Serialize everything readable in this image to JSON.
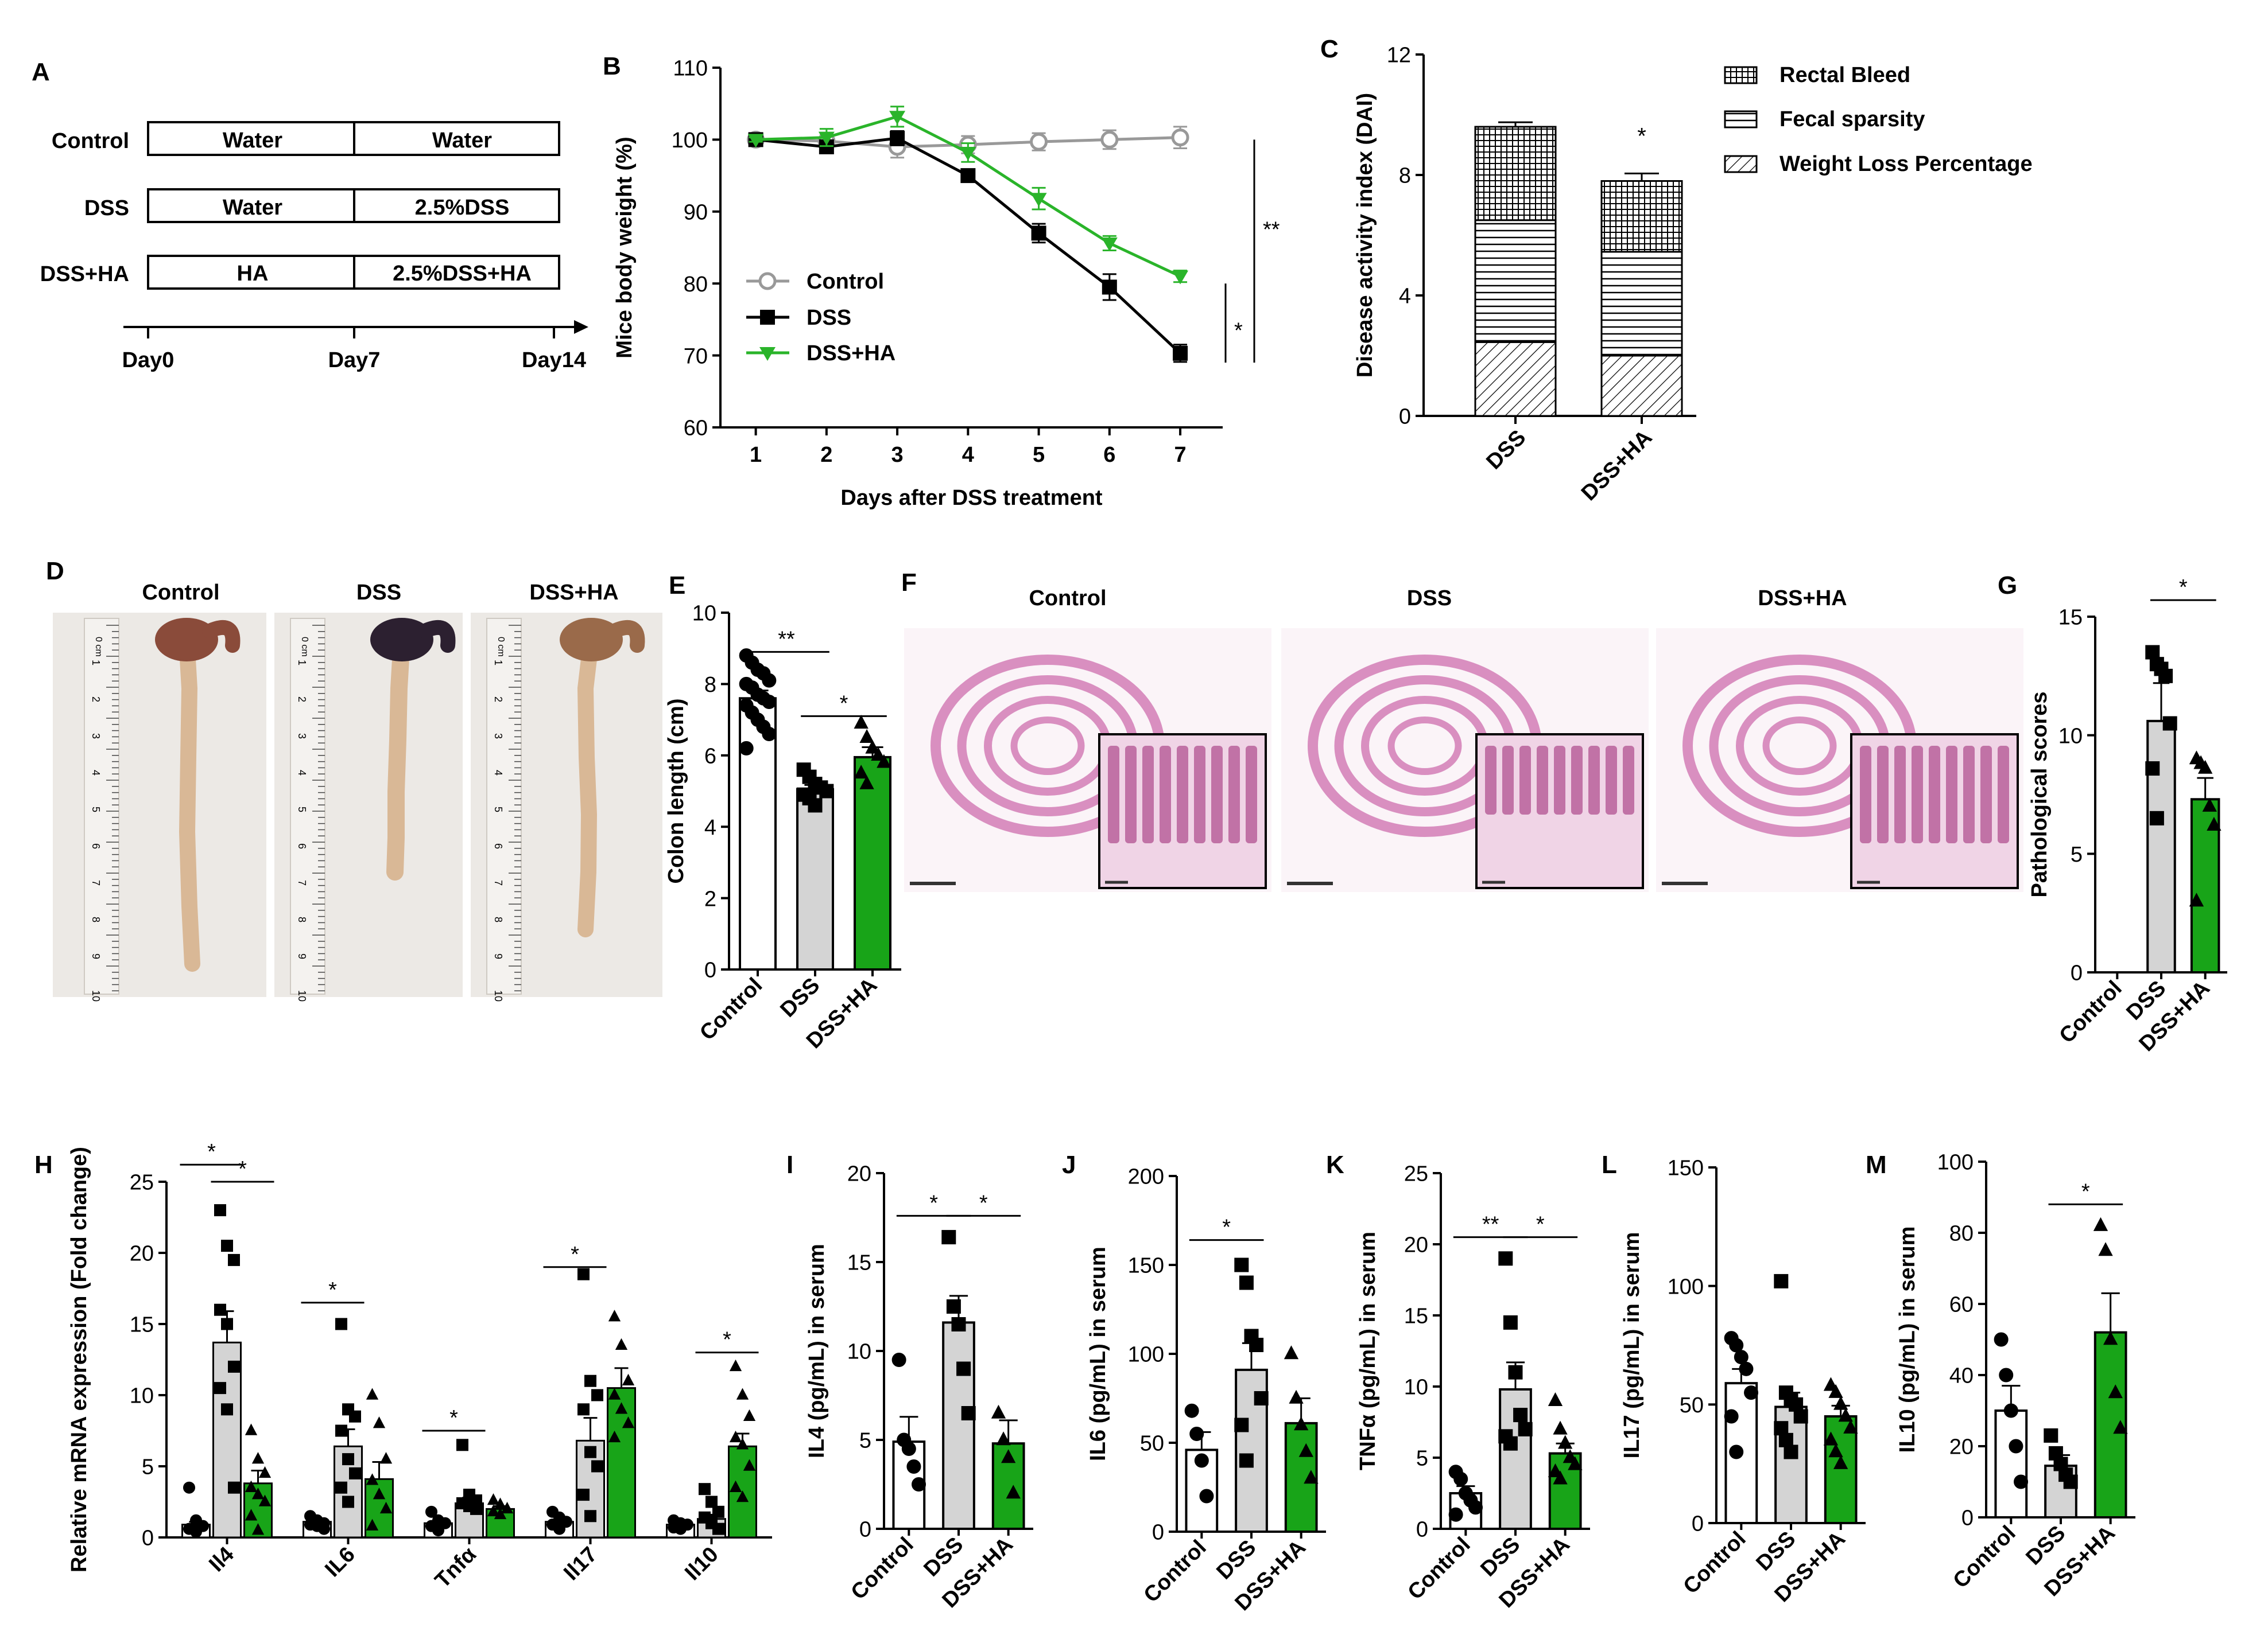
{
  "figure": {
    "panel_letters": [
      "A",
      "B",
      "C",
      "D",
      "E",
      "F",
      "G",
      "H",
      "I",
      "J",
      "K",
      "L",
      "M"
    ],
    "colors": {
      "control": "#ffffff",
      "dss": "#d4d4d4",
      "dss_ha": "#18a418",
      "line_control": "#999999",
      "line_dss": "#000000",
      "line_dss_ha": "#2ab42a",
      "tissue": "#d98fc0",
      "background": "#ffffff"
    }
  },
  "panel_a": {
    "rows": [
      {
        "label": "Control",
        "phase1": "Water",
        "phase2": "Water"
      },
      {
        "label": "DSS",
        "phase1": "Water",
        "phase2": "2.5%DSS"
      },
      {
        "label": "DSS+HA",
        "phase1": "HA",
        "phase2": "2.5%DSS+HA"
      }
    ],
    "timeline": [
      "Day0",
      "Day7",
      "Day14"
    ]
  },
  "panel_d": {
    "labels": [
      "Control",
      "DSS",
      "DSS+HA"
    ],
    "ruler_unit": "0 cm",
    "ruler_ticks": [
      "1",
      "2",
      "3",
      "4",
      "5",
      "6",
      "7",
      "8",
      "9",
      "10"
    ]
  },
  "panel_f": {
    "labels": [
      "Control",
      "DSS",
      "DSS+HA"
    ]
  },
  "chart_data": [
    {
      "id": "B",
      "type": "line",
      "xlabel": "Days after DSS treatment",
      "ylabel": "Mice body weight (%)",
      "x": [
        1,
        2,
        3,
        4,
        5,
        6,
        7
      ],
      "xlim": [
        0.5,
        7.6
      ],
      "ylim": [
        60,
        110
      ],
      "yticks": [
        60,
        70,
        80,
        90,
        100,
        110
      ],
      "series": [
        {
          "name": "Control",
          "values": [
            100,
            99.8,
            99,
            99.3,
            99.7,
            100,
            100.3
          ],
          "err": [
            0.3,
            0.8,
            1.5,
            1.2,
            1.2,
            1.3,
            1.5
          ]
        },
        {
          "name": "DSS",
          "values": [
            100,
            99,
            100.2,
            95,
            87,
            79.5,
            70.3
          ],
          "err": [
            0.3,
            0.8,
            1,
            0.6,
            1.3,
            1.8,
            1.2
          ]
        },
        {
          "name": "DSS+HA",
          "values": [
            100,
            100.3,
            103.2,
            98.2,
            91.8,
            85.6,
            81
          ],
          "err": [
            0.3,
            1.2,
            1.4,
            1.3,
            1.5,
            1,
            0.8
          ]
        }
      ],
      "annotations": [
        "**",
        "*"
      ]
    },
    {
      "id": "C",
      "type": "bar",
      "ylabel": "Disease activity index (DAI)",
      "categories": [
        "DSS",
        "DSS+HA"
      ],
      "ylim": [
        0,
        12
      ],
      "yticks": [
        0,
        4,
        8,
        12
      ],
      "series": [
        {
          "name": "Weight Loss Percentage",
          "values": [
            2.45,
            2.0
          ],
          "err": [
            0.15,
            0.25
          ]
        },
        {
          "name": "Fecal sparsity",
          "values": [
            4.05,
            3.45
          ],
          "err": [
            0.1,
            0.15
          ]
        },
        {
          "name": "Rectal Bleed",
          "values": [
            3.1,
            2.35
          ],
          "err": [
            0.15,
            0.25
          ]
        }
      ],
      "annotations": [
        "*"
      ]
    },
    {
      "id": "E",
      "type": "bar",
      "ylabel": "Colon length (cm)",
      "categories": [
        "Control",
        "DSS",
        "DSS+HA"
      ],
      "ylim": [
        0,
        10
      ],
      "yticks": [
        0,
        2,
        4,
        6,
        8,
        10
      ],
      "values": [
        7.6,
        5.05,
        5.95
      ],
      "err": [
        0.22,
        0.12,
        0.28
      ],
      "points": [
        [
          8.8,
          8.6,
          8.4,
          8.3,
          8.1,
          8,
          7.9,
          7.7,
          7.6,
          7.5,
          7.4,
          7.2,
          7,
          6.8,
          6.6,
          6.2
        ],
        [
          5.6,
          5.4,
          5.2,
          5.1,
          5,
          4.9,
          4.8,
          4.6
        ],
        [
          6.9,
          6.5,
          6.2,
          6.0,
          5.8,
          5.5,
          5.2
        ]
      ],
      "annotations": [
        "**",
        "*"
      ]
    },
    {
      "id": "G",
      "type": "bar",
      "ylabel": "Pathological scores",
      "categories": [
        "Control",
        "DSS",
        "DSS+HA"
      ],
      "ylim": [
        0,
        15
      ],
      "yticks": [
        0,
        5,
        10,
        15
      ],
      "values": [
        0,
        10.6,
        7.3
      ],
      "err": [
        0,
        1.6,
        0.9
      ],
      "points": [
        [],
        [
          13.5,
          13,
          12.8,
          12.5,
          10.5,
          8.6,
          6.5
        ],
        [
          9,
          8.8,
          8.6,
          7,
          6.2,
          3
        ]
      ],
      "annotations": [
        "*"
      ]
    },
    {
      "id": "H",
      "type": "bar",
      "ylabel": "Relative mRNA expression (Fold change)",
      "categories": [
        "Il4",
        "IL6",
        "Tnfα",
        "Il17",
        "Il10"
      ],
      "ylim": [
        0,
        25
      ],
      "yticks": [
        0,
        5,
        10,
        15,
        20,
        25
      ],
      "series": [
        {
          "name": "Control",
          "values": [
            0.9,
            1.1,
            1.0,
            1.1,
            0.9
          ],
          "err": [
            0.2,
            0.15,
            0.15,
            0.15,
            0.1
          ]
        },
        {
          "name": "DSS",
          "values": [
            13.7,
            6.4,
            2.4,
            6.8,
            1.3
          ],
          "err": [
            2.2,
            1.2,
            0.4,
            1.6,
            0.3
          ]
        },
        {
          "name": "DSS+HA",
          "values": [
            3.8,
            4.1,
            2.0,
            10.5,
            6.4
          ],
          "err": [
            0.9,
            1.2,
            0.2,
            1.4,
            0.9
          ]
        }
      ],
      "points": [
        [
          [
            3.5,
            1.2,
            0.8,
            0.6,
            0.4
          ],
          [
            23,
            20.5,
            19.5,
            16,
            15,
            12,
            10.5,
            9,
            3.5
          ],
          [
            7.5,
            5.5,
            4.5,
            3.5,
            3,
            2.5,
            1.5,
            0.5
          ]
        ],
        [
          [
            1.5,
            1.2,
            1,
            0.9,
            0.8,
            0.6
          ],
          [
            15,
            9,
            8.5,
            7.5,
            5.5,
            4.5,
            3.5,
            2.5
          ],
          [
            10,
            8,
            5.5,
            4,
            3,
            2,
            0.8
          ]
        ],
        [
          [
            1.8,
            1.2,
            1,
            0.8,
            0.5
          ],
          [
            6.5,
            3,
            2.6,
            2.4,
            2.2,
            2
          ],
          [
            2.6,
            2.3,
            2,
            1.8,
            1.6
          ]
        ],
        [
          [
            1.8,
            1.4,
            1.1,
            0.9,
            0.6
          ],
          [
            18.5,
            11,
            10,
            9,
            6,
            5,
            3,
            1.5
          ],
          [
            15.5,
            13.5,
            11,
            10,
            9,
            8,
            7
          ]
        ],
        [
          [
            1.2,
            1,
            0.9,
            0.7,
            0.6
          ],
          [
            3.4,
            2.5,
            1.8,
            1.4,
            1,
            0.6
          ],
          [
            12,
            10,
            8.5,
            7,
            6.5,
            5,
            3.5,
            2.8
          ]
        ]
      ],
      "annotations": [
        "*",
        "*",
        "*",
        "*",
        "*",
        "*"
      ]
    },
    {
      "id": "I",
      "type": "bar",
      "ylabel": "IL4 (pg/mL) in serum",
      "categories": [
        "Control",
        "DSS",
        "DSS+HA"
      ],
      "ylim": [
        0,
        20
      ],
      "yticks": [
        0,
        5,
        10,
        15,
        20
      ],
      "values": [
        4.9,
        11.6,
        4.8
      ],
      "err": [
        1.4,
        1.5,
        1.3
      ],
      "points": [
        [
          9.5,
          5,
          4.5,
          3.5,
          2.5
        ],
        [
          16.4,
          12.5,
          11.5,
          9,
          6.5
        ],
        [
          6.5,
          5,
          4,
          2
        ]
      ],
      "annotations": [
        "*",
        "*"
      ]
    },
    {
      "id": "J",
      "type": "bar",
      "ylabel": "IL6 (pg/mL) in serum",
      "categories": [
        "Control",
        "DSS",
        "DSS+HA"
      ],
      "ylim": [
        0,
        200
      ],
      "yticks": [
        0,
        50,
        100,
        150,
        200
      ],
      "values": [
        46,
        91,
        61
      ],
      "err": [
        10,
        15,
        14
      ],
      "points": [
        [
          68,
          55,
          40,
          20
        ],
        [
          150,
          140,
          110,
          105,
          75,
          60,
          40
        ],
        [
          100,
          75,
          60,
          45,
          30
        ]
      ],
      "annotations": [
        "*"
      ]
    },
    {
      "id": "K",
      "type": "bar",
      "ylabel": "TNFα (pg/mL) in serum",
      "categories": [
        "Control",
        "DSS",
        "DSS+HA"
      ],
      "ylim": [
        0,
        25
      ],
      "yticks": [
        0,
        5,
        10,
        15,
        20,
        25
      ],
      "values": [
        2.5,
        9.8,
        5.3
      ],
      "err": [
        0.5,
        1.9,
        0.7
      ],
      "points": [
        [
          4,
          3.5,
          2.5,
          2,
          1.5,
          1
        ],
        [
          19,
          14.5,
          11,
          8,
          7,
          6.5,
          6
        ],
        [
          9,
          7,
          6,
          5,
          4.5,
          4,
          3.5
        ]
      ],
      "annotations": [
        "**",
        "*"
      ]
    },
    {
      "id": "L",
      "type": "bar",
      "ylabel": "IL17 (pg/mL) in serum",
      "categories": [
        "Control",
        "DSS",
        "DSS+HA"
      ],
      "ylim": [
        0,
        150
      ],
      "yticks": [
        0,
        50,
        100,
        150
      ],
      "values": [
        59,
        49,
        45
      ],
      "err": [
        6,
        6,
        4.5
      ],
      "points": [
        [
          78,
          75,
          70,
          65,
          55,
          45,
          30
        ],
        [
          102,
          55,
          52,
          50,
          45,
          40,
          35,
          30
        ],
        [
          58,
          55,
          50,
          45,
          40,
          35,
          30,
          25
        ]
      ],
      "annotations": []
    },
    {
      "id": "M",
      "type": "bar",
      "ylabel": "IL10 (pg/mL) in serum",
      "categories": [
        "Control",
        "DSS",
        "DSS+HA"
      ],
      "ylim": [
        0,
        100
      ],
      "yticks": [
        0,
        20,
        40,
        60,
        80,
        100
      ],
      "values": [
        30,
        14.5,
        52
      ],
      "err": [
        7,
        3,
        11
      ],
      "points": [
        [
          50,
          40,
          30,
          20,
          10
        ],
        [
          23,
          18,
          15,
          12,
          10
        ],
        [
          82,
          75,
          50,
          35,
          25
        ]
      ],
      "annotations": [
        "*"
      ]
    }
  ]
}
